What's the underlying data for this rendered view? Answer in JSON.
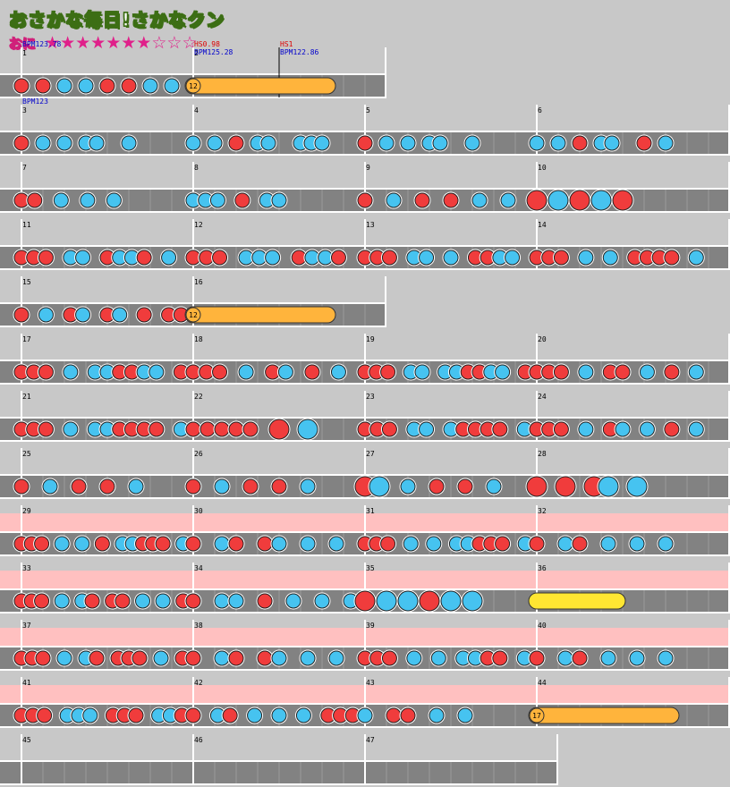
{
  "song": {
    "title": "おさかな毎日!さかなクン",
    "difficulty": "おに",
    "stars_filled": 7,
    "stars_total": 10,
    "filled_star": "★",
    "empty_star": "☆"
  },
  "colors": {
    "background": "#c8c8c8",
    "lane": "#828282",
    "lane_border": "#ffffff",
    "gogo_band": "#ffc0c0",
    "don": "#f03c3c",
    "ka": "#46c3f0",
    "drumroll": "#ffb43c",
    "balloon": "#ffe632",
    "bpm_text": "#0000cc",
    "hs_text": "#dd0000"
  },
  "note_legend": {
    "d": "don (small)",
    "k": "ka (small)",
    "D": "don (big)",
    "K": "ka (big)",
    "R": "drumroll",
    "Y": "balloon",
    "B": "balloon with hit count"
  },
  "measures": [
    {
      "num": "1",
      "bpm": "BPM123.78",
      "notes": "d_d_k_k_d_d_k_k_"
    },
    {
      "num": "2",
      "bpm": "BPM125.28",
      "hs": "HS0.98",
      "notes": "B_R_R_R_R_R_R_.___",
      "balloon_count": "12",
      "mid": {
        "label_bpm": "BPM122.86",
        "label_hs": "HS1"
      }
    },
    {
      "num": "3",
      "bpm": "BPM123",
      "notes": "d_k_k_kk__k_____"
    },
    {
      "num": "4",
      "notes": "k_k_d_kk__kkk___"
    },
    {
      "num": "5",
      "notes": "d_k_k_kk__k_____"
    },
    {
      "num": "6",
      "notes": "k_k_d_kk__d_k___"
    },
    {
      "num": "7",
      "notes": "dd_k_k_k_____"
    },
    {
      "num": "8",
      "notes": "kkk_d_kk______"
    },
    {
      "num": "9",
      "notes": "d_k_d_d_k_k_"
    },
    {
      "num": "10",
      "notes": "DKDKD"
    },
    {
      "num": "11",
      "notes": "ddd_kk_dkkd_k_"
    },
    {
      "num": "12",
      "notes": "ddd_kkk_dkkd_"
    },
    {
      "num": "13",
      "notes": "ddd_kk_k_ddkk_"
    },
    {
      "num": "14",
      "notes": "ddd_k_k_dddd_k"
    },
    {
      "num": "15",
      "notes": "d_k_dk_dk_d_dd"
    },
    {
      "num": "16",
      "notes": "B",
      "balloon_count": "12"
    },
    {
      "num": "17",
      "notes": "ddd_k_kkddkk_d"
    },
    {
      "num": "18",
      "notes": "ddd_k_dk_d_k_"
    },
    {
      "num": "19",
      "notes": "ddd_kk_kkddkk_d"
    },
    {
      "num": "20",
      "notes": "ddd_k_dd_k_d_k"
    },
    {
      "num": "21",
      "notes": "ddd_k_kkdddd_k"
    },
    {
      "num": "22",
      "notes": "ddddd_D_K"
    },
    {
      "num": "23",
      "notes": "ddd_kk_kdddd_k"
    },
    {
      "num": "24",
      "notes": "ddd_k_dk_k_d_k"
    },
    {
      "num": "25",
      "notes": "d_k_d_d_k_"
    },
    {
      "num": "26",
      "notes": "d_k_d_d_k_"
    },
    {
      "num": "27",
      "notes": "DK_k_d_d_k_"
    },
    {
      "num": "28",
      "notes": "D_D_DK_K"
    },
    {
      "num": "29",
      "notes": "ddd_k_k_d_kkddd_k"
    },
    {
      "num": "30",
      "notes": "d_kd_dk_k_k"
    },
    {
      "num": "31",
      "notes": "ddd_k_k_kkddd_k"
    },
    {
      "num": "32",
      "notes": "d_kd_k_k_k"
    },
    {
      "num": "33",
      "notes": "ddd_k_kd_dd_k_k_d"
    },
    {
      "num": "34",
      "notes": "d_kk_d_k_k_k"
    },
    {
      "num": "35",
      "notes": "DKKDKK"
    },
    {
      "num": "36",
      "notes": "Y"
    },
    {
      "num": "37",
      "notes": "ddd_k_kd_ddd_k_d"
    },
    {
      "num": "38",
      "notes": "d_kd_dk_k_k"
    },
    {
      "num": "39",
      "notes": "ddd_k_k_kkdd_k"
    },
    {
      "num": "40",
      "notes": "d_kd_k_k_k"
    },
    {
      "num": "41",
      "notes": "ddd_kkk_ddd_kkd"
    },
    {
      "num": "42",
      "notes": "d_kd_k_k_k_ddd"
    },
    {
      "num": "43",
      "notes": "k_dd_k_k_"
    },
    {
      "num": "44",
      "notes": "R",
      "balloon_count": "17"
    },
    {
      "num": "45",
      "notes": ""
    },
    {
      "num": "46",
      "notes": ""
    },
    {
      "num": "47",
      "notes": ""
    }
  ]
}
